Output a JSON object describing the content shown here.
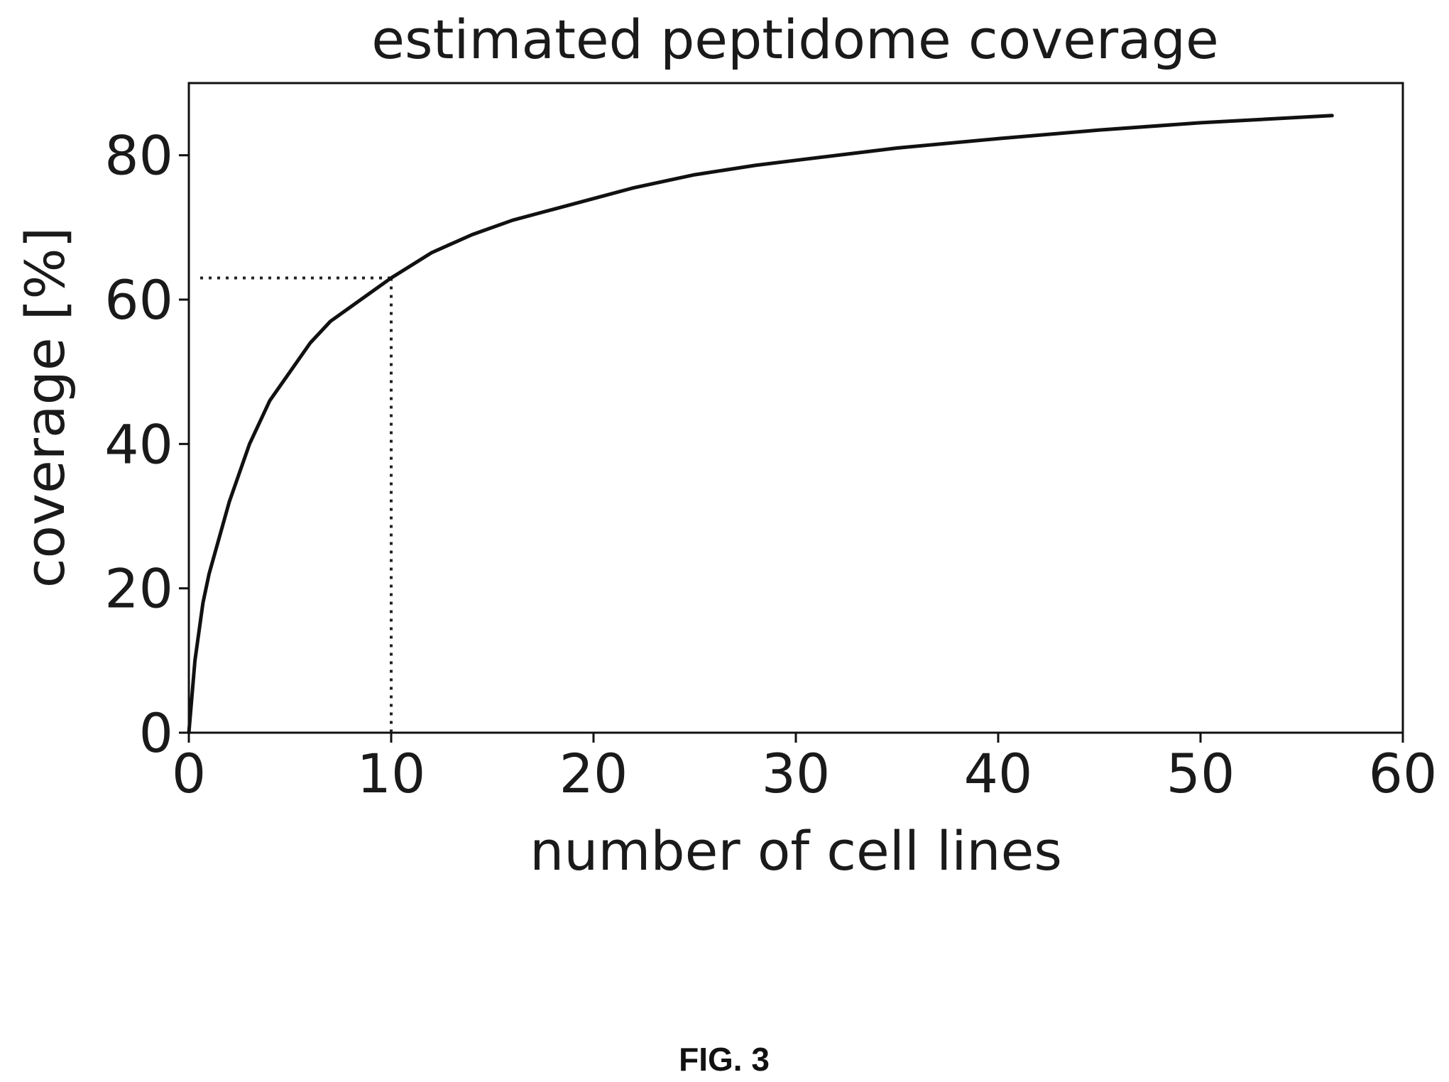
{
  "caption": "FIG. 3",
  "chart_data": {
    "type": "line",
    "title": "estimated peptidome coverage",
    "xlabel": "number of cell lines",
    "ylabel": "coverage [%]",
    "xlim": [
      0,
      60
    ],
    "ylim": [
      0,
      90
    ],
    "xticks": [
      0,
      10,
      20,
      30,
      40,
      50,
      60
    ],
    "yticks": [
      0,
      20,
      40,
      60,
      80
    ],
    "grid": false,
    "series": [
      {
        "x": [
          0,
          0.3,
          0.7,
          1,
          2,
          3,
          4,
          5,
          6,
          7,
          8,
          9,
          10,
          12,
          14,
          16,
          18,
          20,
          22,
          25,
          28,
          30,
          35,
          40,
          45,
          50,
          56.5
        ],
        "y": [
          0,
          10,
          18,
          22,
          32,
          40,
          46,
          50,
          54,
          57,
          59,
          61,
          63,
          66.5,
          69,
          71,
          72.5,
          74,
          75.5,
          77.3,
          78.6,
          79.3,
          81,
          82.3,
          83.5,
          84.5,
          85.5
        ]
      }
    ],
    "annotations": [
      {
        "type": "dotted-reference",
        "x": 10,
        "y": 63
      }
    ],
    "colors": {
      "line": "#111111",
      "axes": "#111111",
      "reference": "#222222"
    }
  }
}
